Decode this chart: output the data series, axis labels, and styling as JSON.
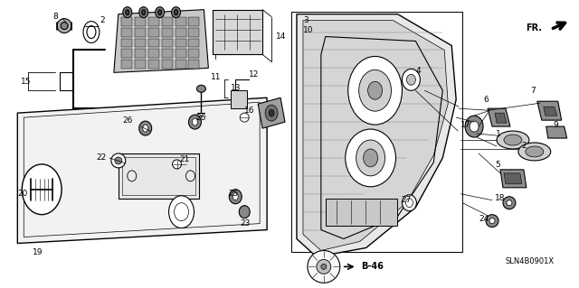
{
  "bg_color": "#ffffff",
  "line_color": "#000000",
  "fig_width": 6.4,
  "fig_height": 3.19,
  "dpi": 100,
  "watermark": "SLN4B0901X"
}
